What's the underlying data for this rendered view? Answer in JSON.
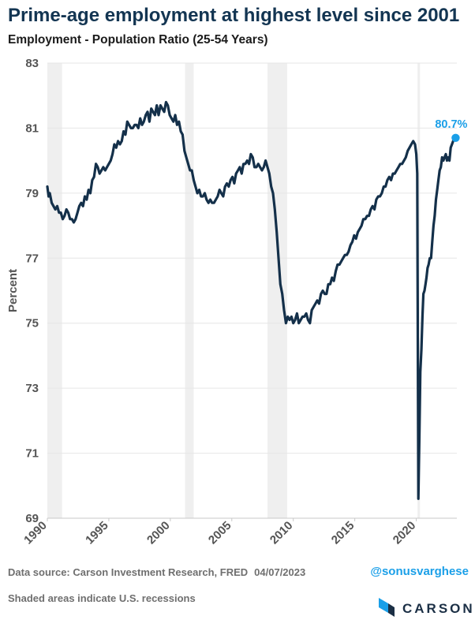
{
  "header": {
    "title": "Prime-age employment at highest level since 2001",
    "subtitle": "Employment - Population Ratio (25-54 Years)"
  },
  "footer": {
    "source": "Data source: Carson Investment Research, FRED",
    "date": "04/07/2023",
    "note": "Shaded areas indicate U.S. recessions",
    "handle": "@sonusvarghese",
    "brand": "CARSON"
  },
  "colors": {
    "line": "#14304a",
    "highlight": "#1a9fe8",
    "recession": "#efefef",
    "grid": "#e6e6e6"
  },
  "chart_data": {
    "type": "line",
    "ylabel": "Percent",
    "xlabel": "",
    "ylim": [
      69,
      83
    ],
    "xlim": [
      1990,
      2023.3
    ],
    "yticks": [
      "69",
      "71",
      "73",
      "75",
      "77",
      "79",
      "81",
      "83"
    ],
    "xticks": [
      "1990",
      "1995",
      "2000",
      "2005",
      "2010",
      "2015",
      "2020"
    ],
    "grid": "horizontal",
    "annotation": {
      "text": "80.7%",
      "x": 2023.2,
      "y": 80.7
    },
    "recessions": [
      [
        1990.0,
        1991.2
      ],
      [
        2001.2,
        2001.9
      ],
      [
        2007.9,
        2009.5
      ],
      [
        2020.1,
        2020.3
      ]
    ],
    "series": [
      {
        "x": [
          1990.0,
          1990.1,
          1990.2,
          1990.35,
          1990.5,
          1990.65,
          1990.8,
          1990.95,
          1991.1,
          1991.25,
          1991.4,
          1991.55,
          1991.7,
          1991.85,
          1992.0,
          1992.15,
          1992.3,
          1992.45,
          1992.6,
          1992.75,
          1992.9,
          1993.05,
          1993.2,
          1993.35,
          1993.5,
          1993.65,
          1993.8,
          1993.95,
          1994.1,
          1994.25,
          1994.4,
          1994.55,
          1994.7,
          1994.85,
          1995.0,
          1995.15,
          1995.3,
          1995.45,
          1995.6,
          1995.75,
          1995.9,
          1996.05,
          1996.2,
          1996.35,
          1996.5,
          1996.65,
          1996.8,
          1996.95,
          1997.1,
          1997.25,
          1997.4,
          1997.55,
          1997.7,
          1997.85,
          1998.0,
          1998.15,
          1998.3,
          1998.45,
          1998.6,
          1998.75,
          1998.9,
          1999.05,
          1999.2,
          1999.35,
          1999.5,
          1999.65,
          1999.8,
          1999.95,
          2000.1,
          2000.25,
          2000.4,
          2000.55,
          2000.7,
          2000.85,
          2001.0,
          2001.15,
          2001.3,
          2001.45,
          2001.6,
          2001.75,
          2001.9,
          2002.05,
          2002.2,
          2002.35,
          2002.5,
          2002.65,
          2002.8,
          2002.95,
          2003.1,
          2003.25,
          2003.4,
          2003.55,
          2003.7,
          2003.85,
          2004.0,
          2004.15,
          2004.3,
          2004.45,
          2004.6,
          2004.75,
          2004.9,
          2005.05,
          2005.2,
          2005.35,
          2005.5,
          2005.65,
          2005.8,
          2005.95,
          2006.1,
          2006.25,
          2006.4,
          2006.55,
          2006.7,
          2006.85,
          2007.0,
          2007.15,
          2007.3,
          2007.45,
          2007.6,
          2007.75,
          2007.9,
          2008.05,
          2008.2,
          2008.35,
          2008.5,
          2008.65,
          2008.8,
          2008.95,
          2009.1,
          2009.25,
          2009.4,
          2009.55,
          2009.7,
          2009.85,
          2010.0,
          2010.15,
          2010.3,
          2010.45,
          2010.6,
          2010.75,
          2010.9,
          2011.05,
          2011.2,
          2011.35,
          2011.5,
          2011.65,
          2011.8,
          2011.95,
          2012.1,
          2012.25,
          2012.4,
          2012.55,
          2012.7,
          2012.85,
          2013.0,
          2013.15,
          2013.3,
          2013.45,
          2013.6,
          2013.75,
          2013.9,
          2014.05,
          2014.2,
          2014.35,
          2014.5,
          2014.65,
          2014.8,
          2014.95,
          2015.1,
          2015.25,
          2015.4,
          2015.55,
          2015.7,
          2015.85,
          2016.0,
          2016.15,
          2016.3,
          2016.45,
          2016.6,
          2016.75,
          2016.9,
          2017.05,
          2017.2,
          2017.35,
          2017.5,
          2017.65,
          2017.8,
          2017.95,
          2018.1,
          2018.25,
          2018.4,
          2018.55,
          2018.7,
          2018.85,
          2019.0,
          2019.15,
          2019.3,
          2019.45,
          2019.6,
          2019.75,
          2019.9,
          2020.0,
          2020.08,
          2020.17,
          2020.25,
          2020.33,
          2020.42,
          2020.5,
          2020.58,
          2020.67,
          2020.75,
          2020.83,
          2020.92,
          2021.0,
          2021.1,
          2021.2,
          2021.3,
          2021.4,
          2021.5,
          2021.6,
          2021.7,
          2021.8,
          2021.9,
          2022.0,
          2022.1,
          2022.2,
          2022.3,
          2022.4,
          2022.5,
          2022.6,
          2022.7,
          2022.8,
          2022.9,
          2023.0,
          2023.1,
          2023.2
        ],
        "values": [
          79.2,
          78.9,
          79.0,
          78.7,
          78.6,
          78.5,
          78.6,
          78.4,
          78.4,
          78.2,
          78.3,
          78.5,
          78.4,
          78.2,
          78.2,
          78.1,
          78.2,
          78.4,
          78.6,
          78.7,
          78.6,
          78.9,
          78.8,
          79.1,
          79.0,
          79.4,
          79.5,
          79.9,
          79.8,
          79.6,
          79.7,
          79.8,
          79.7,
          79.8,
          79.9,
          80.0,
          80.2,
          80.5,
          80.4,
          80.6,
          80.5,
          80.6,
          80.9,
          80.8,
          81.2,
          81.1,
          81.0,
          81.0,
          81.1,
          81.1,
          81.0,
          81.3,
          81.1,
          81.2,
          81.4,
          81.5,
          81.2,
          81.6,
          81.5,
          81.4,
          81.7,
          81.4,
          81.7,
          81.6,
          81.5,
          81.8,
          81.7,
          81.4,
          81.3,
          81.2,
          81.4,
          81.1,
          81.2,
          80.9,
          80.8,
          80.3,
          80.1,
          79.9,
          79.7,
          79.7,
          79.4,
          79.2,
          79.0,
          79.1,
          78.9,
          78.9,
          79.0,
          78.8,
          78.7,
          78.8,
          78.7,
          78.7,
          78.8,
          78.9,
          79.1,
          79.0,
          78.9,
          79.2,
          79.3,
          79.2,
          79.4,
          79.5,
          79.3,
          79.6,
          79.7,
          79.8,
          79.6,
          79.9,
          79.9,
          80.0,
          79.9,
          80.2,
          80.1,
          79.8,
          79.8,
          79.9,
          79.8,
          79.7,
          79.8,
          80.0,
          79.8,
          79.6,
          79.2,
          79.0,
          78.5,
          77.8,
          77.0,
          76.2,
          75.9,
          75.4,
          75.0,
          75.2,
          75.1,
          75.2,
          75.0,
          75.1,
          75.3,
          75.0,
          75.1,
          75.2,
          75.2,
          75.3,
          75.1,
          75.0,
          75.4,
          75.5,
          75.6,
          75.7,
          75.6,
          75.9,
          76.0,
          75.9,
          75.9,
          76.2,
          76.2,
          76.4,
          76.3,
          76.6,
          76.8,
          76.8,
          76.9,
          77.0,
          77.1,
          77.1,
          77.2,
          77.4,
          77.5,
          77.7,
          77.6,
          77.8,
          77.9,
          78.0,
          78.2,
          78.2,
          78.3,
          78.3,
          78.5,
          78.6,
          78.5,
          78.8,
          78.9,
          78.9,
          79.0,
          79.2,
          79.2,
          79.4,
          79.5,
          79.4,
          79.6,
          79.6,
          79.7,
          79.8,
          79.9,
          79.9,
          80.0,
          80.1,
          80.3,
          80.4,
          80.5,
          80.6,
          80.5,
          80.2,
          79.6,
          69.6,
          71.5,
          73.5,
          74.2,
          75.2,
          75.9,
          76.0,
          76.2,
          76.4,
          76.7,
          76.8,
          77.0,
          77.0,
          77.5,
          78.0,
          78.3,
          78.8,
          79.1,
          79.4,
          79.7,
          79.8,
          80.1,
          80.0,
          80.1,
          80.2,
          80.0,
          80.1,
          80.0,
          80.4,
          80.5,
          80.6,
          80.7,
          80.7
        ]
      }
    ]
  }
}
